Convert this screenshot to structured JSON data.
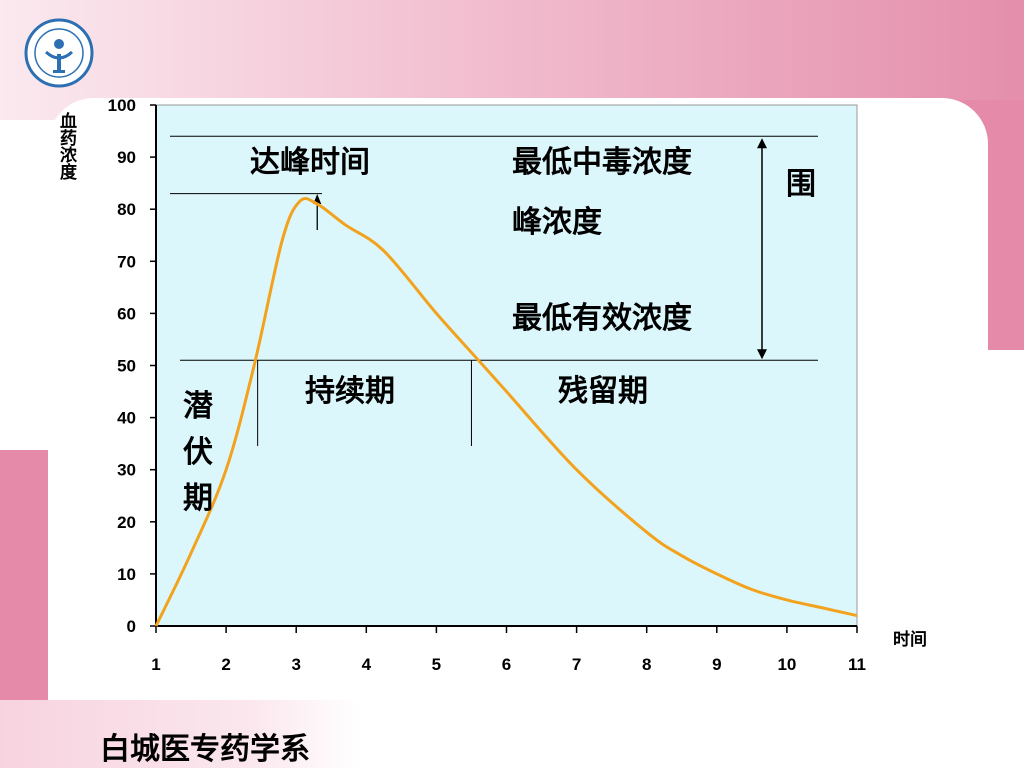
{
  "footer": {
    "text": "白城医专药学系"
  },
  "colors": {
    "plot_bg": "#dcf7fb",
    "curve": "#f2a21d",
    "accent_pink": "#e58aa8"
  },
  "icons": {
    "logo": "school-emblem-icon"
  },
  "chart_data": {
    "type": "line",
    "title": "",
    "xlabel": "时间",
    "ylabel": "血药浓度",
    "xlim": [
      1,
      11
    ],
    "ylim": [
      0,
      100
    ],
    "xticks": [
      1,
      2,
      3,
      4,
      5,
      6,
      7,
      8,
      9,
      10,
      11
    ],
    "yticks": [
      0,
      10,
      20,
      30,
      40,
      50,
      60,
      70,
      80,
      90,
      100
    ],
    "grid": false,
    "series": [
      {
        "x": [
          1,
          1.5,
          2,
          2.4,
          2.8,
          3.05,
          3.3,
          3.7,
          4.25,
          5,
          5.6,
          6,
          7,
          8,
          8.5,
          9,
          9.5,
          10,
          10.5,
          11
        ],
        "y": [
          0,
          14,
          30,
          50,
          74,
          81.5,
          81,
          77,
          72,
          60,
          51,
          45,
          30,
          18,
          13.5,
          10,
          7,
          5,
          3.5,
          2
        ]
      }
    ],
    "reference_lines": {
      "min_toxic": {
        "label": "最低中毒浓度",
        "y": 94
      },
      "peak": {
        "label": "峰浓度",
        "y": 83
      },
      "min_effective": {
        "label": "最低有效浓度",
        "y": 51
      }
    },
    "annotations": {
      "time_to_peak": "达峰时间",
      "range": "围",
      "latent": "潜伏期",
      "duration": "持续期",
      "residual": "残留期"
    },
    "markers": {
      "peak_x": 3.3,
      "effective_start_x": 2.45,
      "effective_end_x": 5.5
    }
  }
}
